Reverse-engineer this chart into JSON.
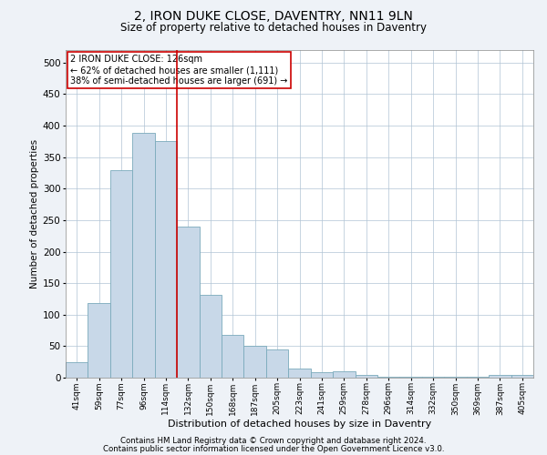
{
  "title": "2, IRON DUKE CLOSE, DAVENTRY, NN11 9LN",
  "subtitle": "Size of property relative to detached houses in Daventry",
  "xlabel": "Distribution of detached houses by size in Daventry",
  "ylabel": "Number of detached properties",
  "bar_color": "#c8d8e8",
  "bar_edge_color": "#7aaabb",
  "categories": [
    "41sqm",
    "59sqm",
    "77sqm",
    "96sqm",
    "114sqm",
    "132sqm",
    "150sqm",
    "168sqm",
    "187sqm",
    "205sqm",
    "223sqm",
    "241sqm",
    "259sqm",
    "278sqm",
    "296sqm",
    "314sqm",
    "332sqm",
    "350sqm",
    "369sqm",
    "387sqm",
    "405sqm"
  ],
  "values": [
    25,
    118,
    330,
    388,
    375,
    240,
    132,
    68,
    50,
    45,
    14,
    8,
    10,
    5,
    2,
    1,
    1,
    1,
    1,
    5,
    5
  ],
  "ylim": [
    0,
    520
  ],
  "yticks": [
    0,
    50,
    100,
    150,
    200,
    250,
    300,
    350,
    400,
    450,
    500
  ],
  "property_line_x": 4.5,
  "annotation_text": "2 IRON DUKE CLOSE: 126sqm\n← 62% of detached houses are smaller (1,111)\n38% of semi-detached houses are larger (691) →",
  "annotation_box_color": "#ffffff",
  "annotation_box_edge": "#cc0000",
  "line_color": "#cc0000",
  "footnote1": "Contains HM Land Registry data © Crown copyright and database right 2024.",
  "footnote2": "Contains public sector information licensed under the Open Government Licence v3.0.",
  "background_color": "#eef2f7",
  "plot_bg_color": "#ffffff",
  "grid_color": "#b0c4d4"
}
